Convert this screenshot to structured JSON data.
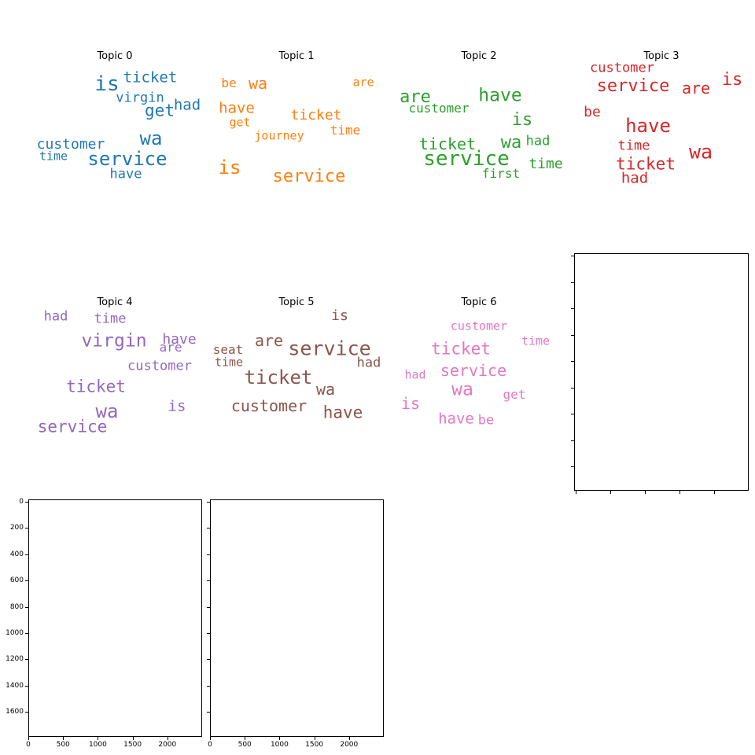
{
  "chart_data": [
    {
      "type": "wordcloud",
      "title": "Topic 0",
      "color": "#1f77b4",
      "words": [
        "is",
        "ticket",
        "virgin",
        "get",
        "had",
        "wa",
        "customer",
        "time",
        "service",
        "have"
      ]
    },
    {
      "type": "wordcloud",
      "title": "Topic 1",
      "color": "#ff7f0e",
      "words": [
        "be",
        "wa",
        "are",
        "have",
        "ticket",
        "get",
        "time",
        "journey",
        "is",
        "service"
      ]
    },
    {
      "type": "wordcloud",
      "title": "Topic 2",
      "color": "#2ca02c",
      "words": [
        "are",
        "have",
        "customer",
        "is",
        "ticket",
        "wa",
        "had",
        "service",
        "time",
        "first"
      ]
    },
    {
      "type": "wordcloud",
      "title": "Topic 3",
      "color": "#d62728",
      "words": [
        "customer",
        "service",
        "are",
        "is",
        "be",
        "have",
        "time",
        "wa",
        "ticket",
        "had"
      ]
    },
    {
      "type": "wordcloud",
      "title": "Topic 4",
      "color": "#9467bd",
      "words": [
        "had",
        "time",
        "have",
        "virgin",
        "are",
        "customer",
        "ticket",
        "is",
        "wa",
        "service"
      ]
    },
    {
      "type": "wordcloud",
      "title": "Topic 5",
      "color": "#8c564b",
      "words": [
        "is",
        "are",
        "service",
        "seat",
        "had",
        "time",
        "ticket",
        "wa",
        "customer",
        "have"
      ]
    },
    {
      "type": "wordcloud",
      "title": "Topic 6",
      "color": "#e377c2",
      "words": [
        "customer",
        "time",
        "ticket",
        "had",
        "service",
        "wa",
        "get",
        "is",
        "have",
        "be"
      ]
    },
    {
      "type": "empty",
      "x_ticks": [],
      "y_ticks": []
    },
    {
      "type": "empty",
      "xlim": [
        0,
        2500
      ],
      "ylim": [
        1800,
        0
      ],
      "x_ticks": [
        "0",
        "500",
        "1000",
        "1500",
        "2000"
      ],
      "y_ticks": [
        "0",
        "200",
        "400",
        "600",
        "800",
        "1000",
        "1200",
        "1400",
        "1600"
      ]
    },
    {
      "type": "empty",
      "xlim": [
        0,
        2500
      ],
      "ylim": [
        1800,
        0
      ],
      "x_ticks": [
        "0",
        "500",
        "1000",
        "1500",
        "2000"
      ],
      "y_ticks": []
    }
  ]
}
